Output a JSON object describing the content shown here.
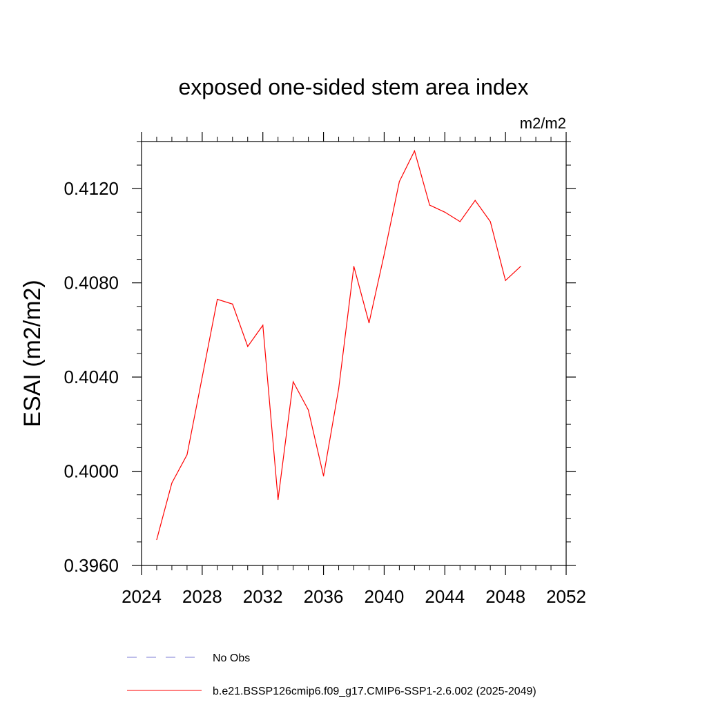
{
  "chart_data": {
    "type": "line",
    "title": "exposed one-sided stem area index",
    "units": "m2/m2",
    "xlabel": "",
    "ylabel": "ESAI  (m2/m2)",
    "xlim": [
      2024,
      2052
    ],
    "ylim": [
      0.396,
      0.414
    ],
    "x_ticks": [
      2024,
      2028,
      2032,
      2036,
      2040,
      2044,
      2048,
      2052
    ],
    "x_tick_labels": [
      "2024",
      "2028",
      "2032",
      "2036",
      "2040",
      "2044",
      "2048",
      "2052"
    ],
    "y_ticks": [
      0.396,
      0.4,
      0.404,
      0.408,
      0.412
    ],
    "y_tick_labels": [
      "0.3960",
      "0.4000",
      "0.4040",
      "0.4080",
      "0.4120"
    ],
    "x_minor_step": 1,
    "y_minor_step": 0.001,
    "grid": false,
    "series": [
      {
        "name": "b.e21.BSSP126cmip6.f09_g17.CMIP6-SSP1-2.6.002 (2025-2049)",
        "color": "#ff0000",
        "style": "solid",
        "x": [
          2025,
          2026,
          2027,
          2028,
          2029,
          2030,
          2031,
          2032,
          2033,
          2034,
          2035,
          2036,
          2037,
          2038,
          2039,
          2040,
          2041,
          2042,
          2043,
          2044,
          2045,
          2046,
          2047,
          2048,
          2049
        ],
        "values": [
          0.3971,
          0.3995,
          0.4007,
          0.404,
          0.4073,
          0.4071,
          0.4053,
          0.4062,
          0.3988,
          0.4038,
          0.4026,
          0.3998,
          0.4035,
          0.4087,
          0.4063,
          0.4092,
          0.4123,
          0.4136,
          0.4113,
          0.411,
          0.4106,
          0.4115,
          0.4106,
          0.4081,
          0.4087
        ]
      }
    ],
    "legend": [
      {
        "label": "No Obs",
        "color": "#7b7bd6",
        "style": "dashed"
      },
      {
        "label": "b.e21.BSSP126cmip6.f09_g17.CMIP6-SSP1-2.6.002 (2025-2049)",
        "color": "#ff0000",
        "style": "solid"
      }
    ],
    "legend_position": "bottom-left"
  }
}
